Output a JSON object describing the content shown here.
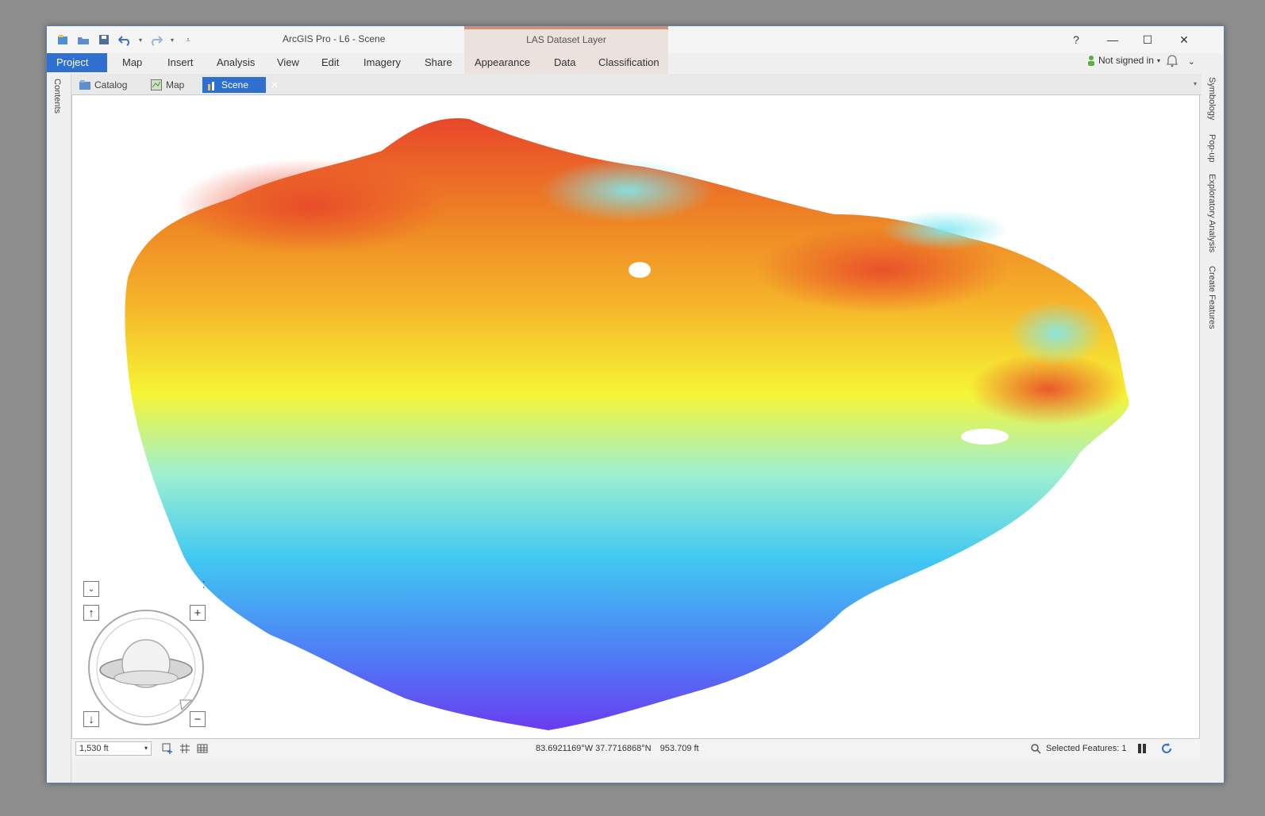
{
  "window": {
    "title": "ArcGIS Pro - L6 - Scene",
    "context_tab_group": "LAS Dataset Layer",
    "controls": {
      "help": "?",
      "minimize": "—",
      "maximize": "☐",
      "close": "✕"
    }
  },
  "ribbon": {
    "tabs": [
      {
        "label": "Project",
        "active": true
      },
      {
        "label": "Map"
      },
      {
        "label": "Insert"
      },
      {
        "label": "Analysis"
      },
      {
        "label": "View"
      },
      {
        "label": "Edit"
      },
      {
        "label": "Imagery"
      },
      {
        "label": "Share"
      },
      {
        "label": "Appearance"
      },
      {
        "label": "Data"
      },
      {
        "label": "Classification"
      }
    ],
    "sign_in": "Not signed in"
  },
  "doc_tabs": [
    {
      "label": "Catalog",
      "icon": "catalog-icon"
    },
    {
      "label": "Map",
      "icon": "map-icon"
    },
    {
      "label": "Scene",
      "icon": "scene-icon",
      "active": true
    }
  ],
  "left_pane": {
    "label": "Contents"
  },
  "right_pane": {
    "tabs": [
      "Symbology",
      "Pop-up",
      "Exploratory Analysis",
      "Create Features"
    ]
  },
  "status": {
    "scale": "1,530 ft",
    "coordinates": "83.6921169°W 37.7716868°N",
    "elevation": "953.709 ft",
    "selected_features": "Selected Features: 1"
  },
  "colors": {
    "accent": "#2f6fd0",
    "context_tab": "#d59272",
    "ramp": [
      "#6a3cf0",
      "#4f7bf5",
      "#41c8f2",
      "#9ff0d0",
      "#f6f535",
      "#f6b32a",
      "#ef8a25",
      "#e8472a"
    ]
  }
}
